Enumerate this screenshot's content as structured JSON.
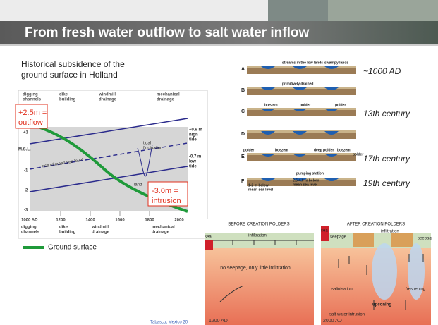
{
  "header": {
    "title": "From fresh water outflow to salt water inflow"
  },
  "left": {
    "heading": [
      "Historical subsidence of the",
      "ground surface in Holland"
    ],
    "diagram": {
      "top_labels": [
        [
          "digging",
          "channels"
        ],
        [
          "dike",
          "building"
        ],
        [
          "windmill",
          "drainage"
        ],
        [
          "mechanical",
          "drainage"
        ]
      ],
      "y_labels": [
        "+1",
        "M.S.L.",
        "-1",
        "-2",
        "-3"
      ],
      "x_labels": [
        "1000 AD",
        "1200",
        "1400",
        "1600",
        "1800",
        "2000"
      ],
      "bottom_labels": [
        [
          "digging",
          "channels"
        ],
        [
          "dike",
          "building"
        ],
        [
          "windmill",
          "drainage"
        ],
        [
          "mechanical",
          "drainage"
        ]
      ],
      "right_labels": [
        [
          "+0.9 m",
          "high",
          "tide"
        ],
        [
          "-0.7 m",
          "low",
          "tide"
        ]
      ],
      "annotations": [
        [
          "tidal",
          "fluctuation"
        ],
        [
          "rise of mean sea level"
        ],
        [
          "land"
        ]
      ],
      "callouts": [
        [
          "+2.5m =",
          "outflow"
        ],
        [
          "-3.0m =",
          "intrusion"
        ]
      ]
    },
    "legend": "Ground surface"
  },
  "profiles": [
    {
      "letter": "A",
      "labels": [
        "streams in the low lands",
        "swampy lands"
      ],
      "era": "~1000 AD"
    },
    {
      "letter": "B",
      "labels": [
        "primitively drained"
      ]
    },
    {
      "letter": "C",
      "labels": [
        "boezem",
        "polder",
        "polder"
      ],
      "era": "13th century"
    },
    {
      "letter": "D"
    },
    {
      "letter": "E",
      "labels": [
        "polder",
        "boezem",
        "deep polder",
        "boezem",
        "polder"
      ],
      "era": "17th century"
    },
    {
      "letter": "F",
      "labels": [
        "pumping station",
        "2.5-4.0 m below",
        "mean sea level",
        "1-2 m below",
        "mean sea level"
      ],
      "era": "19th century"
    }
  ],
  "before": {
    "title": "BEFORE CREATION POLDERS",
    "labels": [
      "sea",
      "infiltration",
      "no seepage, only little infiltration"
    ],
    "date": "1200 AD"
  },
  "after": {
    "title": "AFTER CREATION POLDERS",
    "labels": [
      "sea",
      "seepage",
      "infiltration",
      "seepag",
      "salinisation",
      "freshening",
      "upconing",
      "salt water intrusion"
    ],
    "date": "2000 AD"
  },
  "footer": "Tabasco, Mexico 20"
}
